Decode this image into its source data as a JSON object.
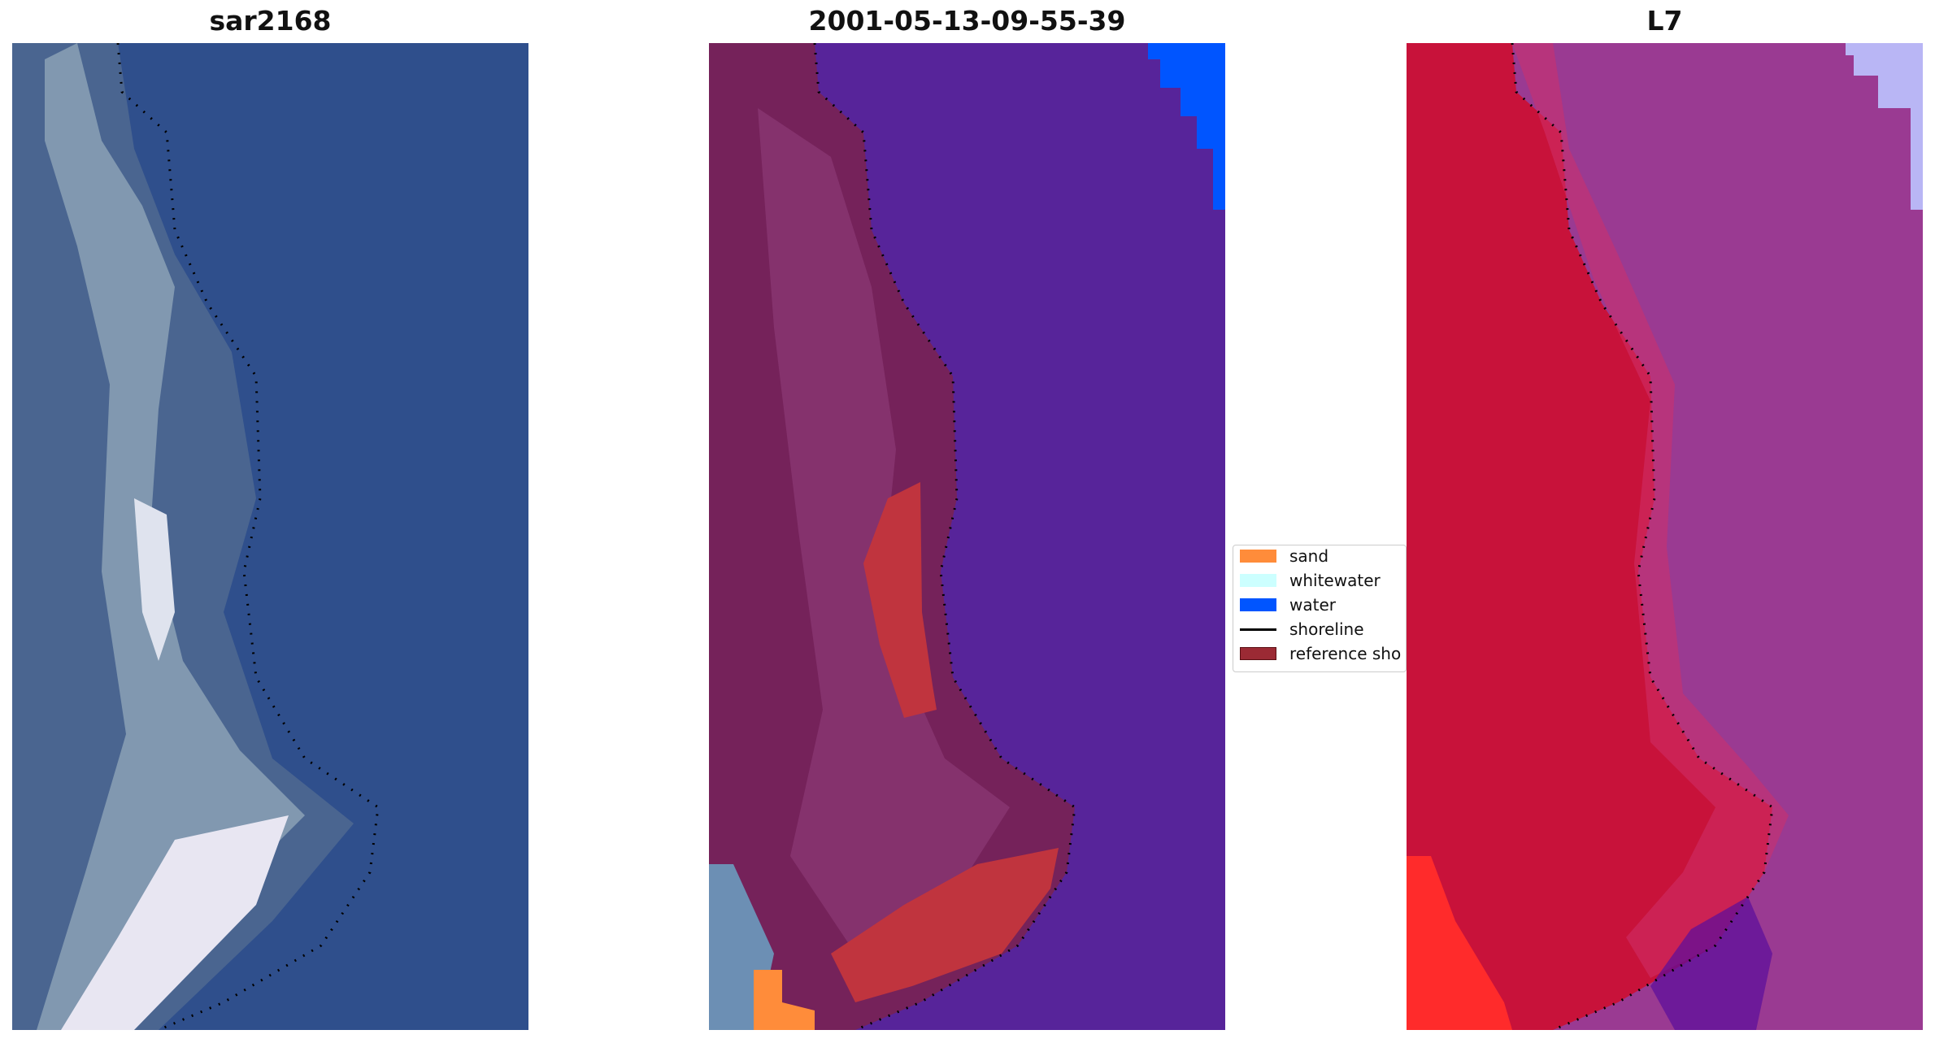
{
  "panels": [
    {
      "title": "sar2168"
    },
    {
      "title": "2001-05-13-09-55-39"
    },
    {
      "title": "L7"
    }
  ],
  "legend": {
    "items": [
      {
        "label": "sand",
        "color": "#ff8c3a",
        "kind": "patch"
      },
      {
        "label": "whitewater",
        "color": "#ccffff",
        "kind": "patch"
      },
      {
        "label": "water",
        "color": "#0055ff",
        "kind": "patch"
      },
      {
        "label": "shoreline",
        "color": "#000000",
        "kind": "line"
      },
      {
        "label": "reference sho",
        "color": "#9b2a34",
        "kind": "patch-outlined"
      }
    ]
  },
  "colors": {
    "ocean_rgb": "#2f4f8c",
    "beach_rgb": "#c9d0e0",
    "class_water_mix": "#57249a",
    "class_land_mix": "#75225a",
    "class_sand_mix": "#c0343e",
    "ndwi_land": "#c8123a",
    "ndwi_water": "#9a3a92"
  }
}
